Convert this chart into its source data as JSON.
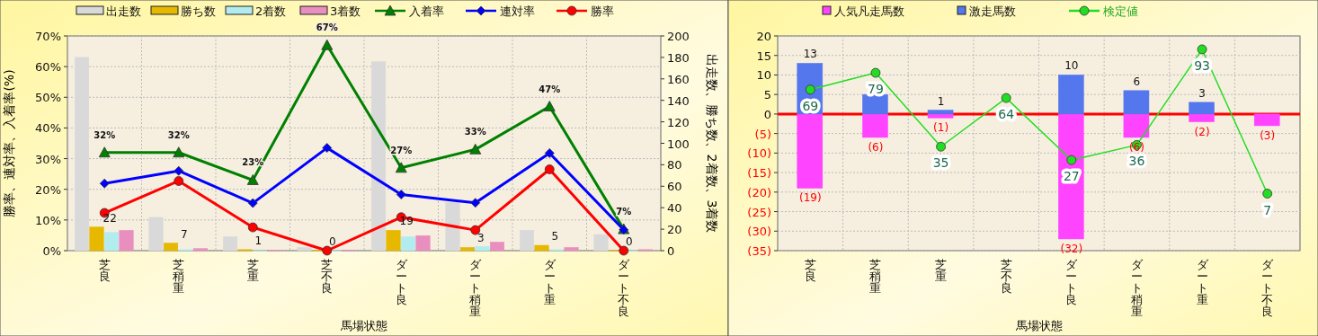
{
  "chart_data": [
    {
      "type": "bar",
      "xlabel": "馬場状態",
      "ylabel": "勝率、連対率、入着率(%)",
      "y2label": "出走数、勝ち数、2着数、3着数",
      "categories": [
        "芝良",
        "芝稍重",
        "芝重",
        "芝不良",
        "ダート良",
        "ダート稍重",
        "ダート重",
        "ダート不良"
      ],
      "series": [
        {
          "name": "出走数",
          "axis": "y2",
          "color": "#d9d9d9",
          "values": [
            180,
            31,
            13,
            3,
            176,
            45,
            19,
            15
          ]
        },
        {
          "name": "勝ち数",
          "axis": "y2",
          "color": "#e6b800",
          "values": [
            22,
            7,
            1,
            0,
            19,
            3,
            5,
            0
          ],
          "value_labels": [
            "22",
            "7",
            "1",
            "0",
            "19",
            "3",
            "5",
            "0"
          ]
        },
        {
          "name": "2着数",
          "axis": "y2",
          "color": "#b3ecef",
          "values": [
            17,
            1,
            0,
            0,
            13,
            4,
            1,
            0
          ]
        },
        {
          "name": "3着数",
          "axis": "y2",
          "color": "#e88fc0",
          "values": [
            19,
            2,
            0,
            0,
            14,
            8,
            3,
            1
          ]
        },
        {
          "name": "入着率",
          "type": "line",
          "color": "#008000",
          "marker": "triangle",
          "values": [
            32,
            32,
            23,
            67,
            27,
            33,
            47,
            7
          ],
          "value_labels": [
            "32%",
            "32%",
            "23%",
            "67%",
            "27%",
            "33%",
            "47%",
            "7%"
          ]
        },
        {
          "name": "連対率",
          "type": "line",
          "color": "#0000ff",
          "marker": "diamond",
          "values": [
            21.9,
            26,
            15.5,
            33.5,
            18.3,
            15.6,
            31.8,
            6.8
          ]
        },
        {
          "name": "勝率",
          "type": "line",
          "color": "#ff0000",
          "marker": "circle",
          "values": [
            12.3,
            22.7,
            7.6,
            0,
            10.9,
            6.7,
            26.5,
            0
          ]
        }
      ],
      "ylim": [
        0,
        70
      ],
      "yticks": [
        {
          "value": 0,
          "label": "0%"
        },
        {
          "value": 10,
          "label": "10%"
        },
        {
          "value": 20,
          "label": "20%"
        },
        {
          "value": 30,
          "label": "30%"
        },
        {
          "value": 40,
          "label": "40%"
        },
        {
          "value": 50,
          "label": "50%"
        },
        {
          "value": 60,
          "label": "60%"
        },
        {
          "value": 70,
          "label": "70%"
        }
      ],
      "y2lim": [
        0,
        200
      ],
      "y2ticks": [
        0,
        20,
        40,
        60,
        80,
        100,
        120,
        140,
        160,
        180,
        200
      ],
      "grid": true,
      "legend": "top"
    },
    {
      "type": "bar",
      "xlabel": "馬場状態",
      "categories": [
        "芝良",
        "芝稍重",
        "芝重",
        "芝不良",
        "ダート良",
        "ダート稍重",
        "ダート重",
        "ダート不良"
      ],
      "stacked": true,
      "series": [
        {
          "name": "人気凡走馬数",
          "color": "#ff44ff",
          "values": [
            -19,
            -6,
            -1,
            null,
            -32,
            -6,
            -2,
            -3
          ],
          "value_labels": [
            "(19)",
            "(6)",
            "(1)",
            null,
            "(32)",
            "(6)",
            "(2)",
            "(3)"
          ]
        },
        {
          "name": "激走馬数",
          "color": "#5577ee",
          "values": [
            13,
            5,
            1,
            null,
            10,
            6,
            3,
            null
          ],
          "value_labels": [
            "13",
            null,
            "1",
            null,
            "10",
            "6",
            "3",
            null
          ]
        },
        {
          "name": "検定値",
          "type": "line",
          "axis": "y2",
          "color": "#22dd22",
          "marker": "circle",
          "values": [
            69,
            79,
            35,
            64,
            27,
            36,
            93,
            7
          ],
          "value_labels": [
            "69",
            "79",
            "35",
            "64",
            "27",
            "36",
            "93",
            "7"
          ]
        }
      ],
      "ylim": [
        -35,
        20
      ],
      "yticks": [
        {
          "value": -35,
          "label": "(35)"
        },
        {
          "value": -30,
          "label": "(30)"
        },
        {
          "value": -25,
          "label": "(25)"
        },
        {
          "value": -20,
          "label": "(20)"
        },
        {
          "value": -15,
          "label": "(15)"
        },
        {
          "value": -10,
          "label": "(10)"
        },
        {
          "value": -5,
          "label": "(5)"
        },
        0,
        5,
        10,
        15,
        20
      ],
      "y2lim": [
        -27,
        101
      ],
      "ref_lines": [
        {
          "axis": "y",
          "value": 0,
          "color": "#ff0000"
        }
      ],
      "grid": true,
      "legend": "top"
    }
  ]
}
